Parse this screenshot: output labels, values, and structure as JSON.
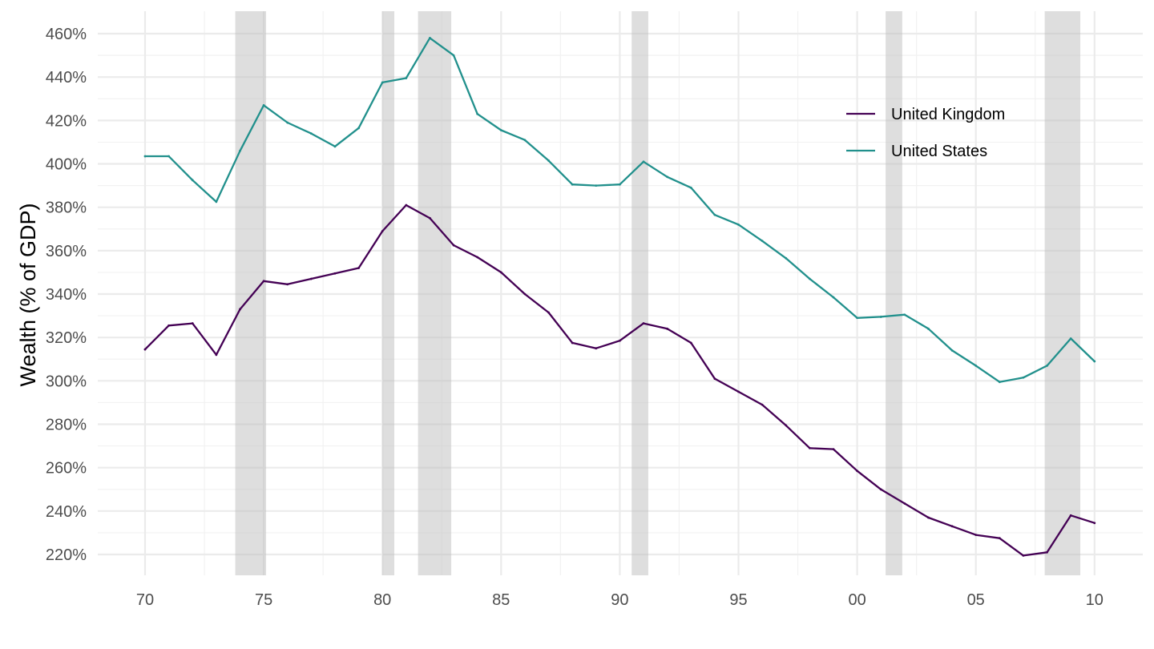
{
  "chart_data": {
    "type": "line",
    "title": "",
    "xlabel": "",
    "ylabel": "Wealth (% of GDP)",
    "xlim": [
      1968,
      2012
    ],
    "ylim": [
      210,
      470
    ],
    "grid": true,
    "legend_position": "top-right",
    "x_ticks": [
      {
        "value": 1970,
        "label": "70"
      },
      {
        "value": 1975,
        "label": "75"
      },
      {
        "value": 1980,
        "label": "80"
      },
      {
        "value": 1985,
        "label": "85"
      },
      {
        "value": 1990,
        "label": "90"
      },
      {
        "value": 1995,
        "label": "95"
      },
      {
        "value": 2000,
        "label": "00"
      },
      {
        "value": 2005,
        "label": "05"
      },
      {
        "value": 2010,
        "label": "10"
      }
    ],
    "y_ticks": [
      {
        "value": 220,
        "label": "220%"
      },
      {
        "value": 240,
        "label": "240%"
      },
      {
        "value": 260,
        "label": "260%"
      },
      {
        "value": 280,
        "label": "280%"
      },
      {
        "value": 300,
        "label": "300%"
      },
      {
        "value": 320,
        "label": "320%"
      },
      {
        "value": 340,
        "label": "340%"
      },
      {
        "value": 360,
        "label": "360%"
      },
      {
        "value": 380,
        "label": "380%"
      },
      {
        "value": 400,
        "label": "400%"
      },
      {
        "value": 420,
        "label": "420%"
      },
      {
        "value": 440,
        "label": "440%"
      },
      {
        "value": 460,
        "label": "460%"
      }
    ],
    "recession_bands": [
      [
        1973.8,
        1975.1
      ],
      [
        1980.0,
        1980.5
      ],
      [
        1981.5,
        1982.9
      ],
      [
        1990.5,
        1991.2
      ],
      [
        2001.2,
        2001.9
      ],
      [
        2007.9,
        2009.4
      ]
    ],
    "x": [
      1970,
      1971,
      1972,
      1973,
      1974,
      1975,
      1976,
      1977,
      1978,
      1979,
      1980,
      1981,
      1982,
      1983,
      1984,
      1985,
      1986,
      1987,
      1988,
      1989,
      1990,
      1991,
      1992,
      1993,
      1994,
      1995,
      1996,
      1997,
      1998,
      1999,
      2000,
      2001,
      2002,
      2003,
      2004,
      2005,
      2006,
      2007,
      2008,
      2009,
      2010
    ],
    "series": [
      {
        "name": "United Kingdom",
        "color": "#440154",
        "values": [
          314.5,
          325.5,
          326.5,
          312.0,
          333.0,
          346.0,
          344.5,
          347.0,
          349.5,
          352.0,
          369.0,
          381.0,
          375.0,
          362.5,
          357.0,
          350.0,
          340.0,
          331.5,
          317.5,
          315.0,
          318.5,
          326.5,
          324.0,
          317.5,
          301.0,
          295.0,
          289.0,
          279.5,
          269.0,
          268.5,
          258.5,
          250.0,
          243.5,
          237.0,
          233.0,
          229.0,
          227.5,
          219.5,
          221.0,
          238.0,
          234.5
        ]
      },
      {
        "name": "United States",
        "color": "#21908C",
        "values": [
          403.5,
          403.5,
          392.5,
          382.5,
          406.0,
          427.0,
          419.0,
          414.0,
          408.0,
          416.5,
          437.5,
          439.5,
          458.0,
          450.0,
          423.0,
          415.5,
          411.0,
          401.5,
          390.5,
          390.0,
          390.5,
          401.0,
          394.0,
          389.0,
          376.5,
          372.0,
          364.5,
          356.5,
          347.0,
          338.5,
          329.0,
          329.5,
          330.5,
          324.0,
          314.0,
          307.0,
          299.5,
          301.5,
          307.0,
          319.5,
          309.0
        ]
      }
    ]
  }
}
